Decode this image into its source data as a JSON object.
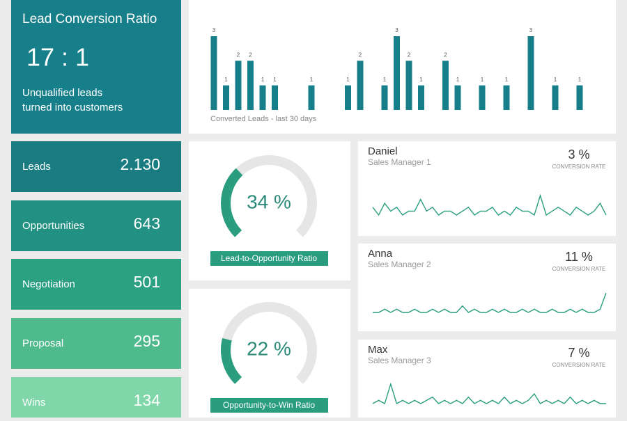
{
  "lead_conversion": {
    "title": "Lead Conversion Ratio",
    "ratio": "17 : 1",
    "description": [
      "Unqualified leads",
      "turned into customers"
    ],
    "color": "#177f89"
  },
  "funnel": [
    {
      "label": "Leads",
      "value": "2.130",
      "color": "#1a7b80"
    },
    {
      "label": "Opportunities",
      "value": "643",
      "color": "#229082"
    },
    {
      "label": "Negotiation",
      "value": "501",
      "color": "#2ba181"
    },
    {
      "label": "Proposal",
      "value": "295",
      "color": "#4fba8c"
    },
    {
      "label": "Wins",
      "value": "134",
      "color": "#7fd7a9"
    }
  ],
  "converted_leads": {
    "type": "bar",
    "caption": "Converted Leads - last 30 days",
    "values": [
      3,
      1,
      2,
      2,
      1,
      1,
      0,
      0,
      1,
      0,
      0,
      1,
      2,
      0,
      1,
      3,
      2,
      1,
      0,
      2,
      1,
      0,
      1,
      0,
      1,
      0,
      3,
      0,
      1,
      0,
      1
    ],
    "ylim": [
      0,
      3
    ],
    "color": "#177f89"
  },
  "gauges": [
    {
      "value": 34,
      "value_label": "34 %",
      "label": "Lead-to-Opportunity Ratio",
      "range": [
        0,
        100
      ],
      "color": "#2a9d7f"
    },
    {
      "value": 22,
      "value_label": "22 %",
      "label": "Opportunity-to-Win Ratio",
      "range": [
        0,
        100
      ],
      "color": "#2a9d7f"
    }
  ],
  "managers": [
    {
      "name": "Daniel",
      "role": "Sales Manager 1",
      "rate": 3,
      "rate_label": "3 %",
      "rate_caption": "CONVERSION RATE",
      "sparkline": [
        5,
        3,
        6,
        4,
        5,
        3,
        4,
        4,
        7,
        4,
        5,
        3,
        4,
        4,
        3,
        4,
        5,
        3,
        4,
        4,
        5,
        3,
        4,
        3,
        5,
        4,
        4,
        3,
        8,
        3,
        4,
        5,
        4,
        3,
        5,
        4,
        3,
        4,
        6,
        3
      ]
    },
    {
      "name": "Anna",
      "role": "Sales Manager 2",
      "rate": 11,
      "rate_label": "11 %",
      "rate_caption": "CONVERSION RATE",
      "sparkline": [
        3,
        3,
        4,
        3,
        4,
        3,
        3,
        4,
        3,
        3,
        4,
        3,
        4,
        3,
        3,
        5,
        3,
        4,
        3,
        3,
        4,
        3,
        4,
        3,
        3,
        4,
        3,
        4,
        3,
        3,
        4,
        3,
        3,
        4,
        3,
        4,
        3,
        3,
        4,
        9
      ]
    },
    {
      "name": "Max",
      "role": "Sales Manager 3",
      "rate": 7,
      "rate_label": "7 %",
      "rate_caption": "CONVERSION RATE",
      "sparkline": [
        3,
        4,
        3,
        9,
        3,
        4,
        3,
        4,
        3,
        4,
        5,
        3,
        4,
        3,
        4,
        3,
        5,
        3,
        4,
        3,
        4,
        3,
        5,
        3,
        4,
        3,
        4,
        6,
        3,
        4,
        3,
        4,
        3,
        5,
        3,
        4,
        3,
        4,
        3,
        3
      ]
    }
  ]
}
